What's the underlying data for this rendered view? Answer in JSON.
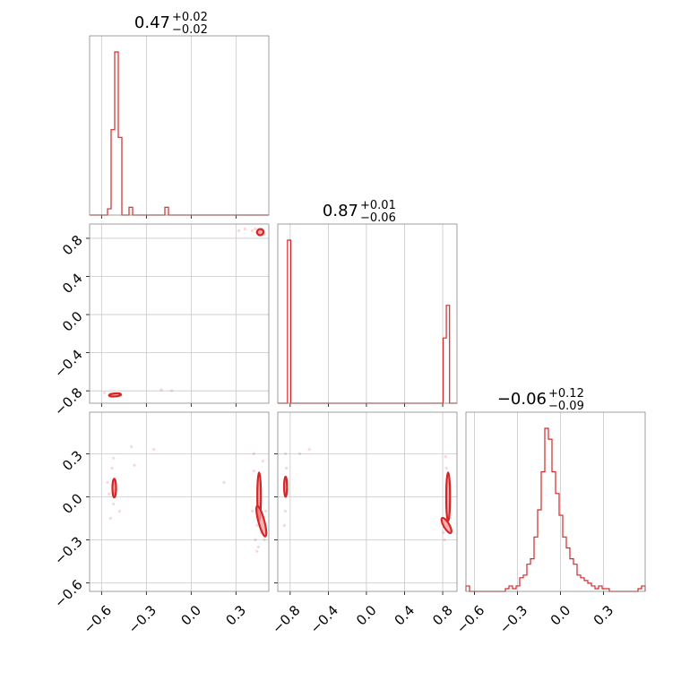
{
  "params": [
    {
      "title": "0.47",
      "plus": "+0.02",
      "minus": "−0.02"
    },
    {
      "title": "0.87",
      "plus": "+0.01",
      "minus": "−0.06"
    },
    {
      "title": "−0.06",
      "plus": "+0.12",
      "minus": "−0.09"
    }
  ],
  "chart_data": {
    "type": "corner",
    "color": "#d62728",
    "params": [
      {
        "range": [
          -0.68,
          0.52
        ],
        "ticks": [
          -0.6,
          -0.3,
          0.0,
          0.3
        ],
        "tick_labels": [
          "−0.6",
          "−0.3",
          "0.0",
          "0.3"
        ],
        "hist": {
          "edges": [
            -0.68,
            -0.656,
            -0.632,
            -0.608,
            -0.584,
            -0.56,
            -0.536,
            -0.512,
            -0.488,
            -0.464,
            -0.44,
            -0.416,
            -0.392,
            -0.368,
            -0.344,
            -0.32,
            -0.296,
            -0.272,
            -0.248,
            -0.224,
            -0.2,
            -0.176,
            -0.152,
            -0.128,
            -0.104,
            -0.08,
            -0.056,
            -0.032,
            -0.008,
            0.016,
            0.04,
            0.064,
            0.088,
            0.112,
            0.136,
            0.16,
            0.184,
            0.208,
            0.232,
            0.256,
            0.28,
            0.304,
            0.328,
            0.352,
            0.376,
            0.4,
            0.424,
            0.448,
            0.472,
            0.496,
            0.52
          ],
          "counts": [
            0,
            0,
            0,
            0,
            0,
            4,
            55,
            105,
            50,
            0,
            0,
            5,
            0,
            0,
            0,
            0,
            0,
            0,
            0,
            0,
            0,
            5,
            0,
            0,
            0,
            0,
            0,
            0,
            0,
            0,
            0,
            0,
            0,
            0,
            0,
            0,
            0,
            0,
            0,
            0,
            0,
            0,
            0,
            0,
            0,
            0,
            0,
            0,
            0,
            0
          ]
        }
      },
      {
        "range": [
          -0.93,
          0.95
        ],
        "ticks": [
          -0.8,
          -0.4,
          0.0,
          0.4,
          0.8
        ],
        "tick_labels": [
          "−0.8",
          "−0.4",
          "0.0",
          "0.4",
          "0.8"
        ],
        "hist": {
          "edges": [
            -0.93,
            -0.896,
            -0.862,
            -0.828,
            -0.794,
            -0.76,
            -0.726,
            -0.692,
            -0.658,
            -0.624,
            -0.59,
            -0.556,
            -0.522,
            -0.488,
            -0.454,
            -0.42,
            -0.386,
            -0.352,
            -0.318,
            -0.284,
            -0.25,
            -0.216,
            -0.182,
            -0.148,
            -0.114,
            -0.08,
            -0.046,
            -0.012,
            0.022,
            0.056,
            0.09,
            0.124,
            0.158,
            0.192,
            0.226,
            0.26,
            0.294,
            0.328,
            0.362,
            0.396,
            0.43,
            0.464,
            0.498,
            0.532,
            0.566,
            0.6,
            0.634,
            0.668,
            0.702,
            0.736,
            0.77,
            0.804,
            0.838,
            0.872,
            0.906,
            0.95
          ],
          "counts": [
            0,
            0,
            0,
            5,
            0,
            0,
            0,
            0,
            0,
            0,
            0,
            0,
            0,
            0,
            0,
            0,
            0,
            0,
            0,
            0,
            0,
            0,
            0,
            0,
            0,
            0,
            0,
            0,
            0,
            0,
            0,
            0,
            0,
            0,
            0,
            0,
            0,
            0,
            0,
            0,
            0,
            0,
            0,
            0,
            0,
            0,
            0,
            0,
            0,
            0,
            0,
            2,
            3,
            0,
            0
          ]
        }
      },
      {
        "range": [
          -0.66,
          0.59
        ],
        "ticks": [
          -0.6,
          -0.3,
          0.0,
          0.3
        ],
        "tick_labels": [
          "−0.6",
          "−0.3",
          "0.0",
          "0.3"
        ],
        "hist": {
          "edges": [
            -0.66,
            -0.635,
            -0.61,
            -0.585,
            -0.56,
            -0.535,
            -0.51,
            -0.485,
            -0.46,
            -0.435,
            -0.41,
            -0.385,
            -0.36,
            -0.335,
            -0.31,
            -0.285,
            -0.26,
            -0.235,
            -0.21,
            -0.185,
            -0.16,
            -0.135,
            -0.11,
            -0.085,
            -0.06,
            -0.035,
            -0.01,
            0.015,
            0.04,
            0.065,
            0.09,
            0.115,
            0.14,
            0.165,
            0.19,
            0.215,
            0.24,
            0.265,
            0.29,
            0.315,
            0.34,
            0.365,
            0.39,
            0.415,
            0.44,
            0.465,
            0.49,
            0.515,
            0.54,
            0.565,
            0.59
          ],
          "counts": [
            2,
            0,
            0,
            0,
            0,
            0,
            0,
            0,
            0,
            0,
            0,
            1,
            2,
            1,
            2,
            5,
            6,
            10,
            12,
            20,
            30,
            44,
            60,
            56,
            44,
            36,
            28,
            20,
            16,
            12,
            10,
            6,
            5,
            4,
            3,
            2,
            1,
            2,
            1,
            1,
            0,
            0,
            0,
            0,
            0,
            0,
            0,
            0,
            1,
            2
          ]
        }
      }
    ],
    "pairs": [
      {
        "x": 0,
        "y": 1,
        "points": [
          [
            -0.53,
            -0.84
          ],
          [
            -0.52,
            -0.845
          ],
          [
            -0.51,
            -0.84
          ],
          [
            -0.5,
            -0.85
          ],
          [
            -0.49,
            -0.845
          ],
          [
            -0.54,
            -0.83
          ],
          [
            -0.52,
            -0.83
          ],
          [
            -0.47,
            -0.85
          ],
          [
            -0.58,
            -0.82
          ],
          [
            -0.2,
            -0.79
          ],
          [
            -0.13,
            -0.8
          ],
          [
            0.43,
            0.9
          ],
          [
            0.45,
            0.87
          ],
          [
            0.46,
            0.85
          ],
          [
            0.44,
            0.86
          ],
          [
            0.47,
            0.85
          ],
          [
            0.41,
            0.88
          ],
          [
            0.48,
            0.87
          ],
          [
            0.49,
            0.84
          ],
          [
            0.47,
            0.88
          ],
          [
            0.32,
            0.88
          ],
          [
            0.36,
            0.9
          ]
        ],
        "blobs": [
          {
            "cx": 0.463,
            "cy": 0.865,
            "rx": 0.022,
            "ry": 0.032,
            "rot": -20
          },
          {
            "cx": -0.51,
            "cy": -0.843,
            "rx": 0.04,
            "ry": 0.016,
            "rot": -5
          }
        ]
      },
      {
        "x": 0,
        "y": 2,
        "points": [
          [
            -0.56,
            0.1
          ],
          [
            -0.53,
            0.2
          ],
          [
            -0.52,
            -0.05
          ],
          [
            -0.54,
            -0.15
          ],
          [
            -0.52,
            0.27
          ],
          [
            -0.5,
            0.05
          ],
          [
            -0.55,
            0.02
          ],
          [
            -0.4,
            0.35
          ],
          [
            -0.38,
            0.22
          ],
          [
            -0.48,
            -0.1
          ],
          [
            -0.25,
            0.33
          ],
          [
            0.22,
            0.1
          ],
          [
            0.42,
            0.3
          ],
          [
            0.44,
            -0.2
          ],
          [
            0.43,
            -0.3
          ],
          [
            0.45,
            -0.35
          ],
          [
            0.47,
            -0.25
          ],
          [
            0.42,
            0.18
          ],
          [
            0.48,
            0.25
          ],
          [
            0.5,
            -0.1
          ],
          [
            0.46,
            0.05
          ],
          [
            0.44,
            -0.38
          ],
          [
            0.49,
            -0.3
          ],
          [
            0.41,
            -0.1
          ]
        ],
        "blobs": [
          {
            "cx": -0.515,
            "cy": 0.06,
            "rx": 0.012,
            "ry": 0.065,
            "rot": 0
          },
          {
            "cx": 0.455,
            "cy": 0.0,
            "rx": 0.012,
            "ry": 0.17,
            "rot": 0
          },
          {
            "cx": 0.47,
            "cy": -0.17,
            "rx": 0.02,
            "ry": 0.11,
            "rot": -15
          }
        ]
      },
      {
        "x": 1,
        "y": 2,
        "points": [
          [
            -0.86,
            0.1
          ],
          [
            -0.85,
            -0.1
          ],
          [
            -0.84,
            0.2
          ],
          [
            -0.85,
            0.3
          ],
          [
            -0.86,
            -0.2
          ],
          [
            -0.83,
            0.05
          ],
          [
            -0.7,
            0.3
          ],
          [
            -0.6,
            0.33
          ],
          [
            0.82,
            -0.3
          ],
          [
            0.84,
            0.2
          ],
          [
            0.85,
            -0.2
          ],
          [
            0.86,
            0.1
          ],
          [
            0.87,
            -0.05
          ],
          [
            0.83,
            0.28
          ],
          [
            0.88,
            -0.15
          ],
          [
            0.81,
            -0.25
          ]
        ],
        "blobs": [
          {
            "cx": -0.848,
            "cy": 0.07,
            "rx": 0.015,
            "ry": 0.07,
            "rot": 0
          },
          {
            "cx": 0.857,
            "cy": 0.0,
            "rx": 0.02,
            "ry": 0.17,
            "rot": 0
          },
          {
            "cx": 0.84,
            "cy": -0.2,
            "rx": 0.03,
            "ry": 0.06,
            "rot": -30
          }
        ]
      }
    ],
    "grid": true
  }
}
